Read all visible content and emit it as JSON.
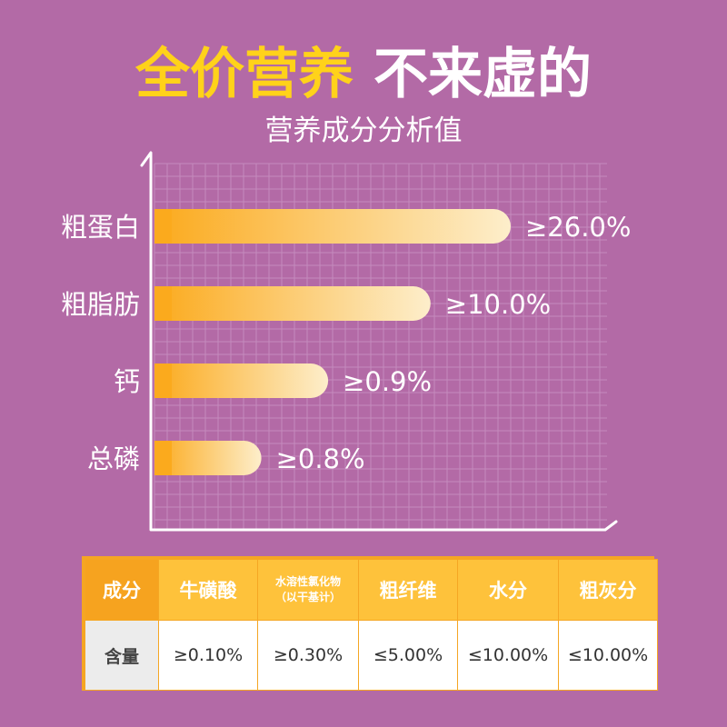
{
  "headline": {
    "part1": "全价营养",
    "part2": "不来虚的"
  },
  "chart_data": {
    "type": "bar",
    "orientation": "horizontal",
    "title": "营养成分分析值",
    "categories": [
      "粗蛋白",
      "粗脂肪",
      "钙",
      "总磷"
    ],
    "values": [
      26.0,
      10.0,
      0.9,
      0.8
    ],
    "value_labels": [
      "≥26.0%",
      "≥10.0%",
      "≥0.9%",
      "≥0.8%"
    ],
    "bar_length_fraction": [
      0.8,
      0.62,
      0.39,
      0.24
    ],
    "grid": true,
    "colors": {
      "bar_start": "#fbaa1d",
      "bar_end": "#fdeecb",
      "axis": "#ffffff",
      "grid": "#c58bbd"
    }
  },
  "table": {
    "headers": [
      "成分",
      "牛磺酸",
      "水溶性氯化物",
      "（以干基计）",
      "粗纤维",
      "水分",
      "粗灰分"
    ],
    "row_label": "含量",
    "values": [
      "≥0.10%",
      "≥0.30%",
      "≤5.00%",
      "≤10.00%",
      "≤10.00%"
    ]
  },
  "colors": {
    "background": "#b36aa6",
    "accent_yellow": "#ffd21a",
    "table_border": "#f5a623",
    "table_header": "#fec23b"
  }
}
